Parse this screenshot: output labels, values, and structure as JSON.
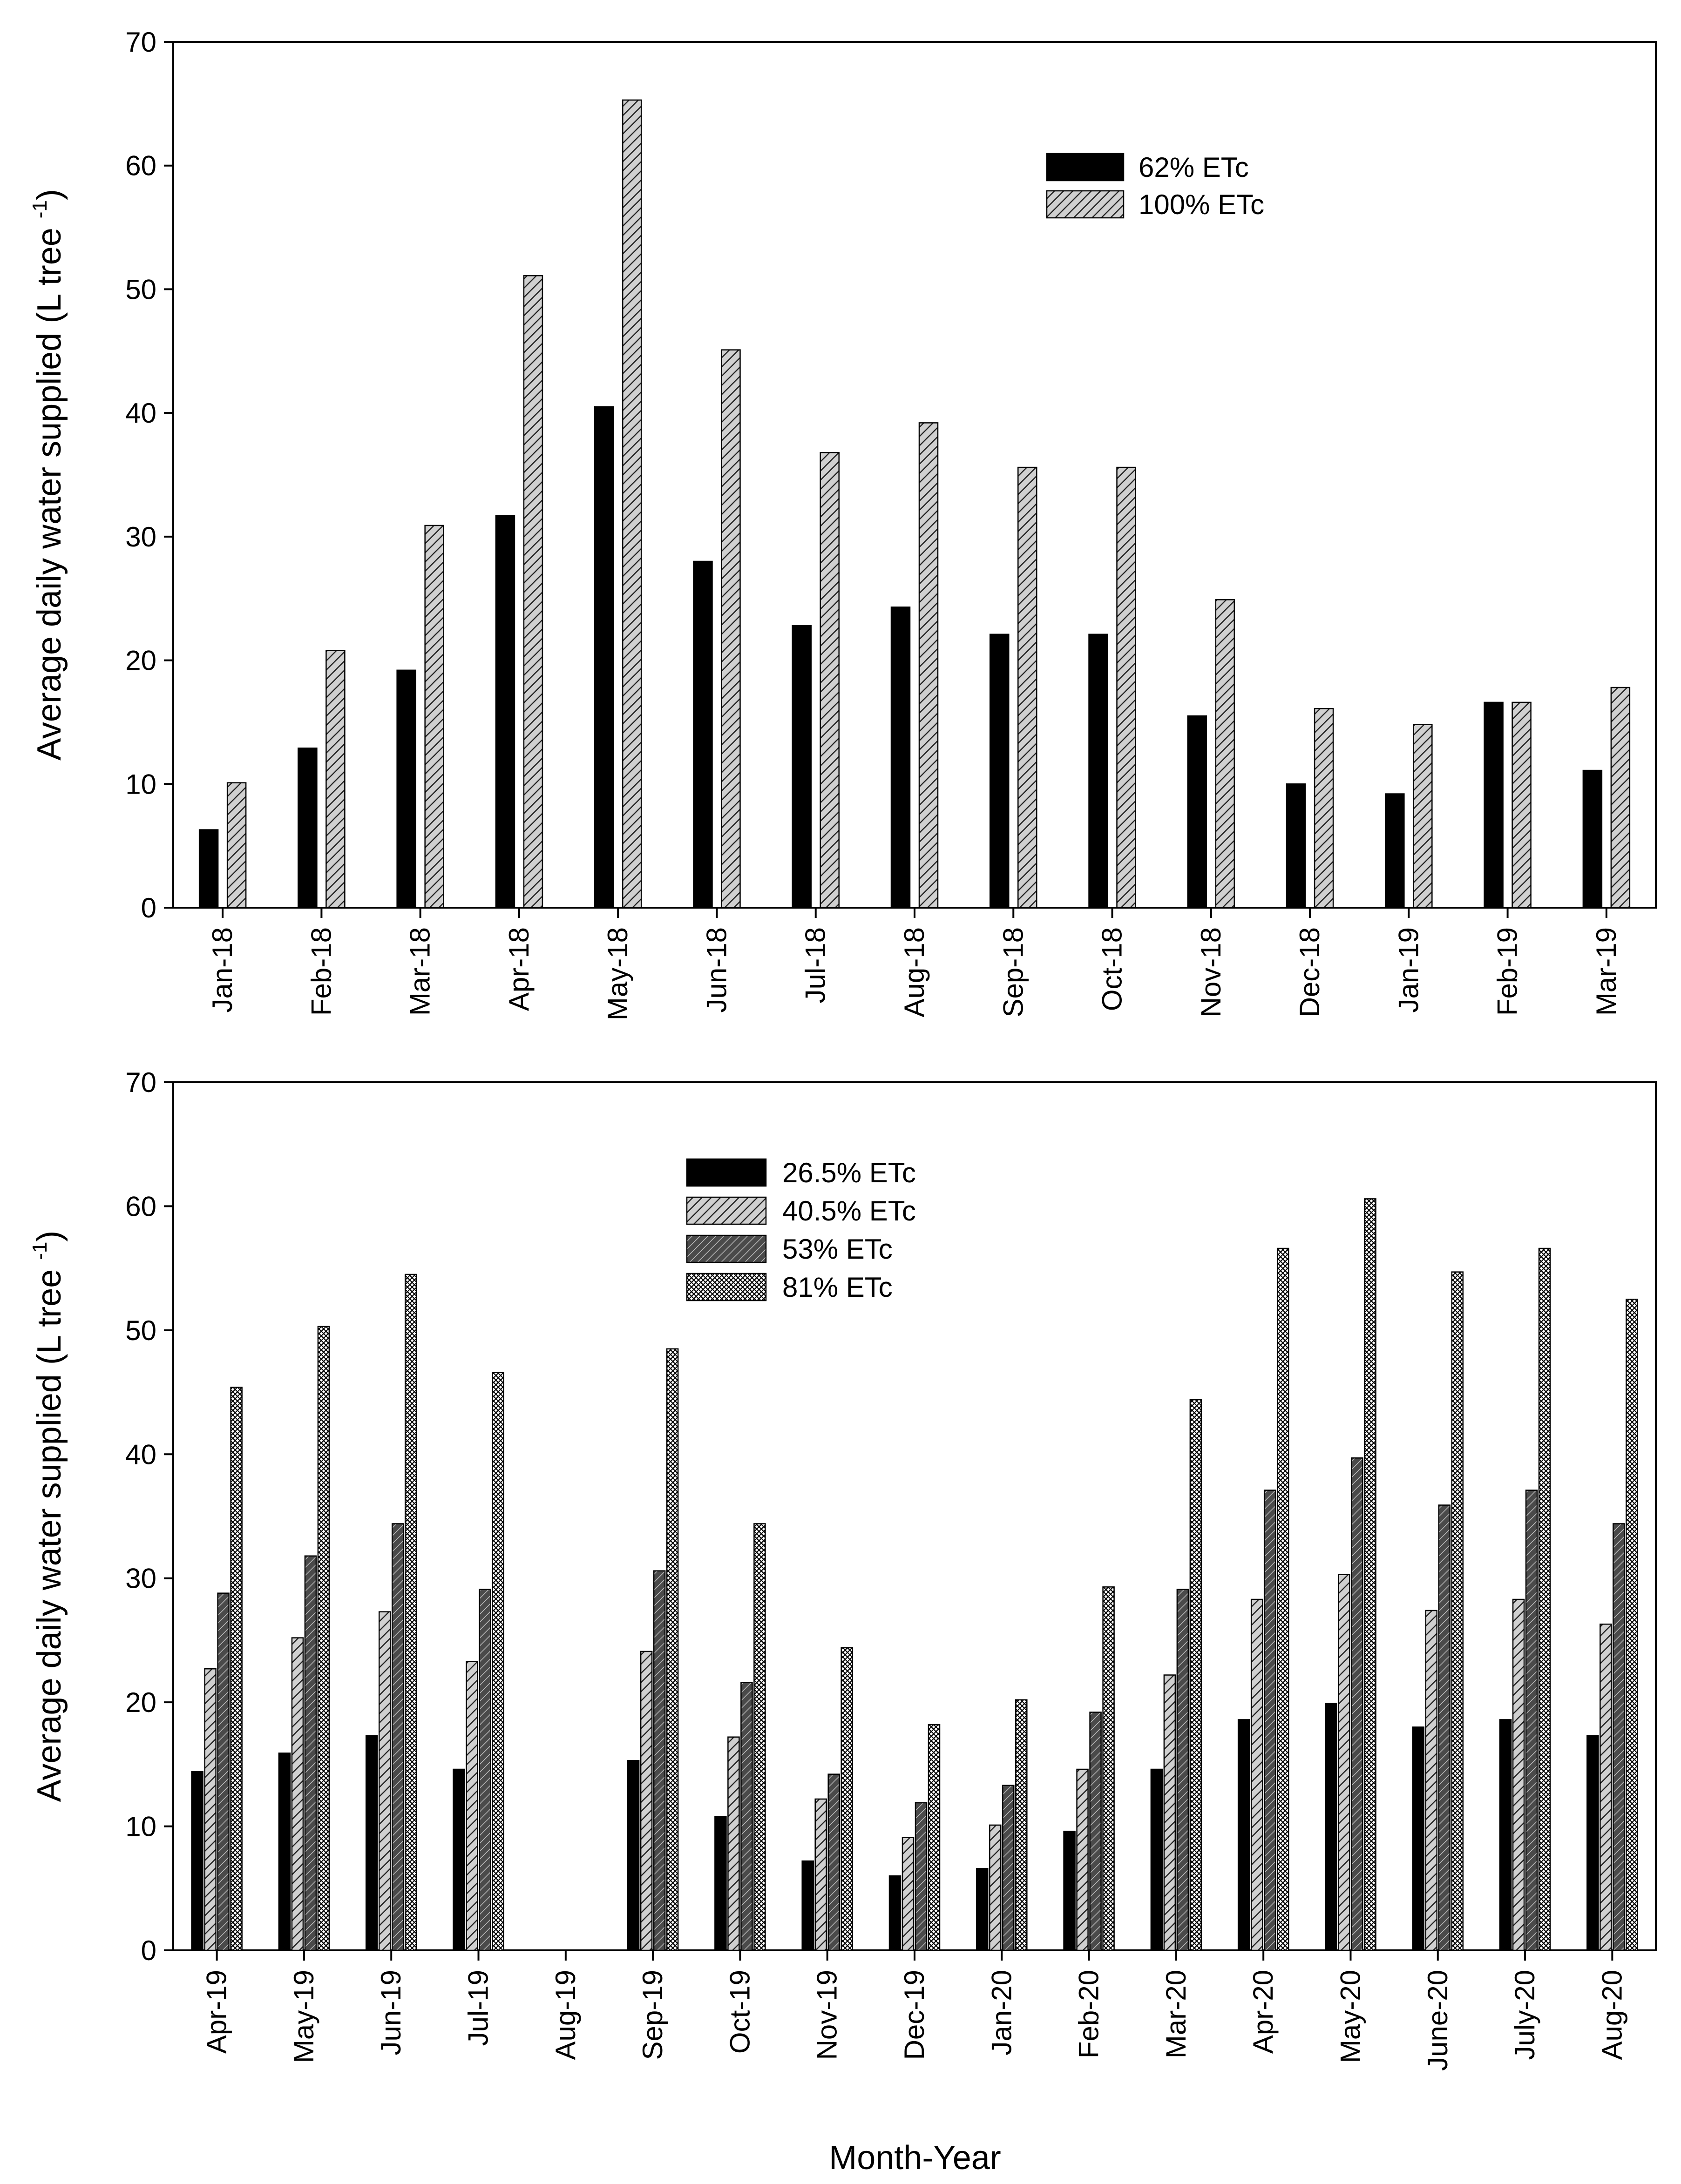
{
  "figure": {
    "xlabel": "Month-Year"
  },
  "chart_data": [
    {
      "type": "bar",
      "title": "",
      "ylabel": "Average daily water supplied (L tree",
      "ylabel_superscript": "-1",
      "ylabel_close": ")",
      "ylim": [
        0,
        70
      ],
      "yticks": [
        0,
        10,
        20,
        30,
        40,
        50,
        60,
        70
      ],
      "legend_position": "top-right",
      "categories": [
        "Jan-18",
        "Feb-18",
        "Mar-18",
        "Apr-18",
        "May-18",
        "Jun-18",
        "Jul-18",
        "Aug-18",
        "Sep-18",
        "Oct-18",
        "Nov-18",
        "Dec-18",
        "Jan-19",
        "Feb-19",
        "Mar-19"
      ],
      "series": [
        {
          "name": "62% ETc",
          "pattern": "solid",
          "values": [
            6.3,
            12.9,
            19.2,
            31.7,
            40.5,
            28.0,
            22.8,
            24.3,
            22.1,
            22.1,
            15.5,
            10.0,
            9.2,
            16.6,
            11.1
          ]
        },
        {
          "name": "100%  ETc",
          "pattern": "hatch-light",
          "values": [
            10.1,
            20.8,
            30.9,
            51.1,
            65.3,
            45.1,
            36.8,
            39.2,
            35.6,
            35.6,
            24.9,
            16.1,
            14.8,
            16.6,
            17.8
          ]
        }
      ]
    },
    {
      "type": "bar",
      "title": "",
      "ylabel": "Average daily water supplied (L tree",
      "ylabel_superscript": "-1",
      "ylabel_close": ")",
      "ylim": [
        0,
        70
      ],
      "yticks": [
        0,
        10,
        20,
        30,
        40,
        50,
        60,
        70
      ],
      "legend_position": "top-center",
      "categories": [
        "Apr-19",
        "May-19",
        "Jun-19",
        "Jul-19",
        "Aug-19",
        "Sep-19",
        "Oct-19",
        "Nov-19",
        "Dec-19",
        "Jan-20",
        "Feb-20",
        "Mar-20",
        "Apr-20",
        "May-20",
        "June-20",
        "July-20",
        "Aug-20"
      ],
      "series": [
        {
          "name": "26.5%  ETc",
          "pattern": "solid",
          "values": [
            14.4,
            15.9,
            17.3,
            14.6,
            null,
            15.3,
            10.8,
            7.2,
            6.0,
            6.6,
            9.6,
            14.6,
            18.6,
            19.9,
            18.0,
            18.6,
            17.3
          ]
        },
        {
          "name": "40.5%  ETc",
          "pattern": "hatch-light",
          "values": [
            22.7,
            25.2,
            27.3,
            23.3,
            null,
            24.1,
            17.2,
            12.2,
            9.1,
            10.1,
            14.6,
            22.2,
            28.3,
            30.3,
            27.4,
            28.3,
            26.3
          ]
        },
        {
          "name": "53% ETc",
          "pattern": "hatch-dark",
          "values": [
            28.8,
            31.8,
            34.4,
            29.1,
            null,
            30.6,
            21.6,
            14.2,
            11.9,
            13.3,
            19.2,
            29.1,
            37.1,
            39.7,
            35.9,
            37.1,
            34.4
          ]
        },
        {
          "name": "81% ETc",
          "pattern": "crosshatch",
          "values": [
            45.4,
            50.3,
            54.5,
            46.6,
            null,
            48.5,
            34.4,
            24.4,
            18.2,
            20.2,
            29.3,
            44.4,
            56.6,
            60.6,
            54.7,
            56.6,
            52.5
          ]
        }
      ]
    }
  ]
}
